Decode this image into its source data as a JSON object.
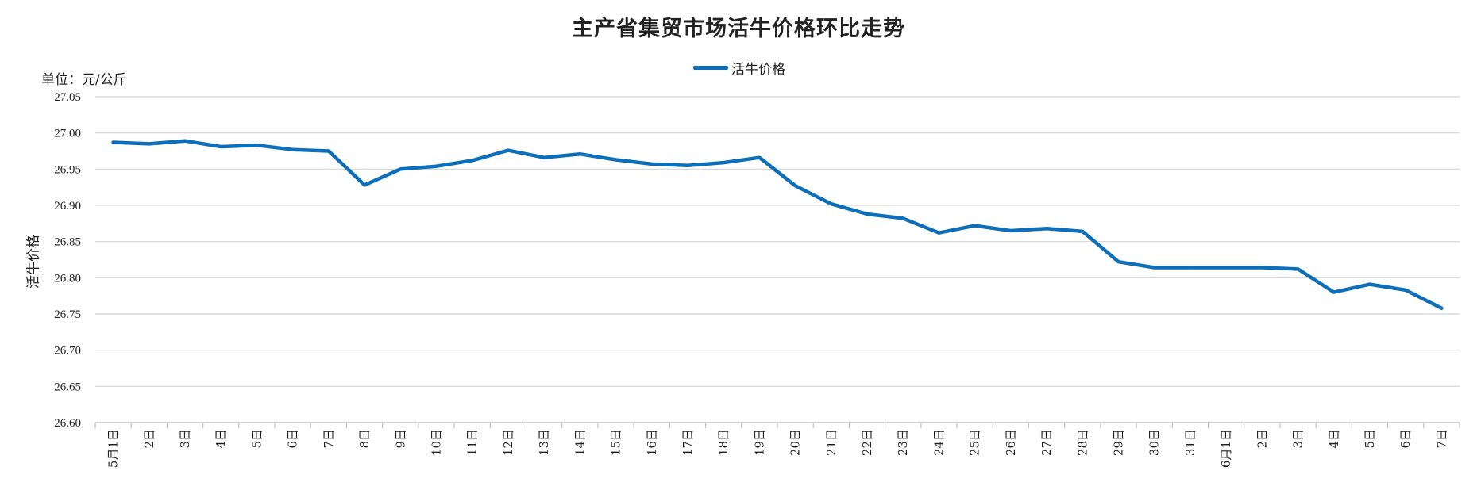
{
  "chart_data": {
    "type": "line",
    "title": "主产省集贸市场活牛价格环比走势",
    "unit_label": "单位：元/公斤",
    "ylabel": "活牛价格",
    "legend_position": "top-center",
    "grid": true,
    "ylim": [
      26.6,
      27.05
    ],
    "yticks": [
      "26.60",
      "26.65",
      "26.70",
      "26.75",
      "26.80",
      "26.85",
      "26.90",
      "26.95",
      "27.00",
      "27.05"
    ],
    "categories": [
      "5月1日",
      "2日",
      "3日",
      "4日",
      "5日",
      "6日",
      "7日",
      "8日",
      "9日",
      "10日",
      "11日",
      "12日",
      "13日",
      "14日",
      "15日",
      "16日",
      "17日",
      "18日",
      "19日",
      "20日",
      "21日",
      "22日",
      "23日",
      "24日",
      "25日",
      "26日",
      "27日",
      "28日",
      "29日",
      "30日",
      "31日",
      "6月1日",
      "2日",
      "3日",
      "4日",
      "5日",
      "6日",
      "7日"
    ],
    "series": [
      {
        "name": "活牛价格",
        "color": "#0d6fba",
        "values": [
          26.987,
          26.985,
          26.989,
          26.981,
          26.983,
          26.977,
          26.975,
          26.928,
          26.95,
          26.954,
          26.962,
          26.976,
          26.966,
          26.971,
          26.963,
          26.957,
          26.955,
          26.959,
          26.966,
          26.927,
          26.902,
          26.888,
          26.882,
          26.862,
          26.872,
          26.865,
          26.868,
          26.864,
          26.822,
          26.814,
          26.814,
          26.814,
          26.814,
          26.812,
          26.78,
          26.791,
          26.783,
          26.758
        ]
      }
    ]
  }
}
